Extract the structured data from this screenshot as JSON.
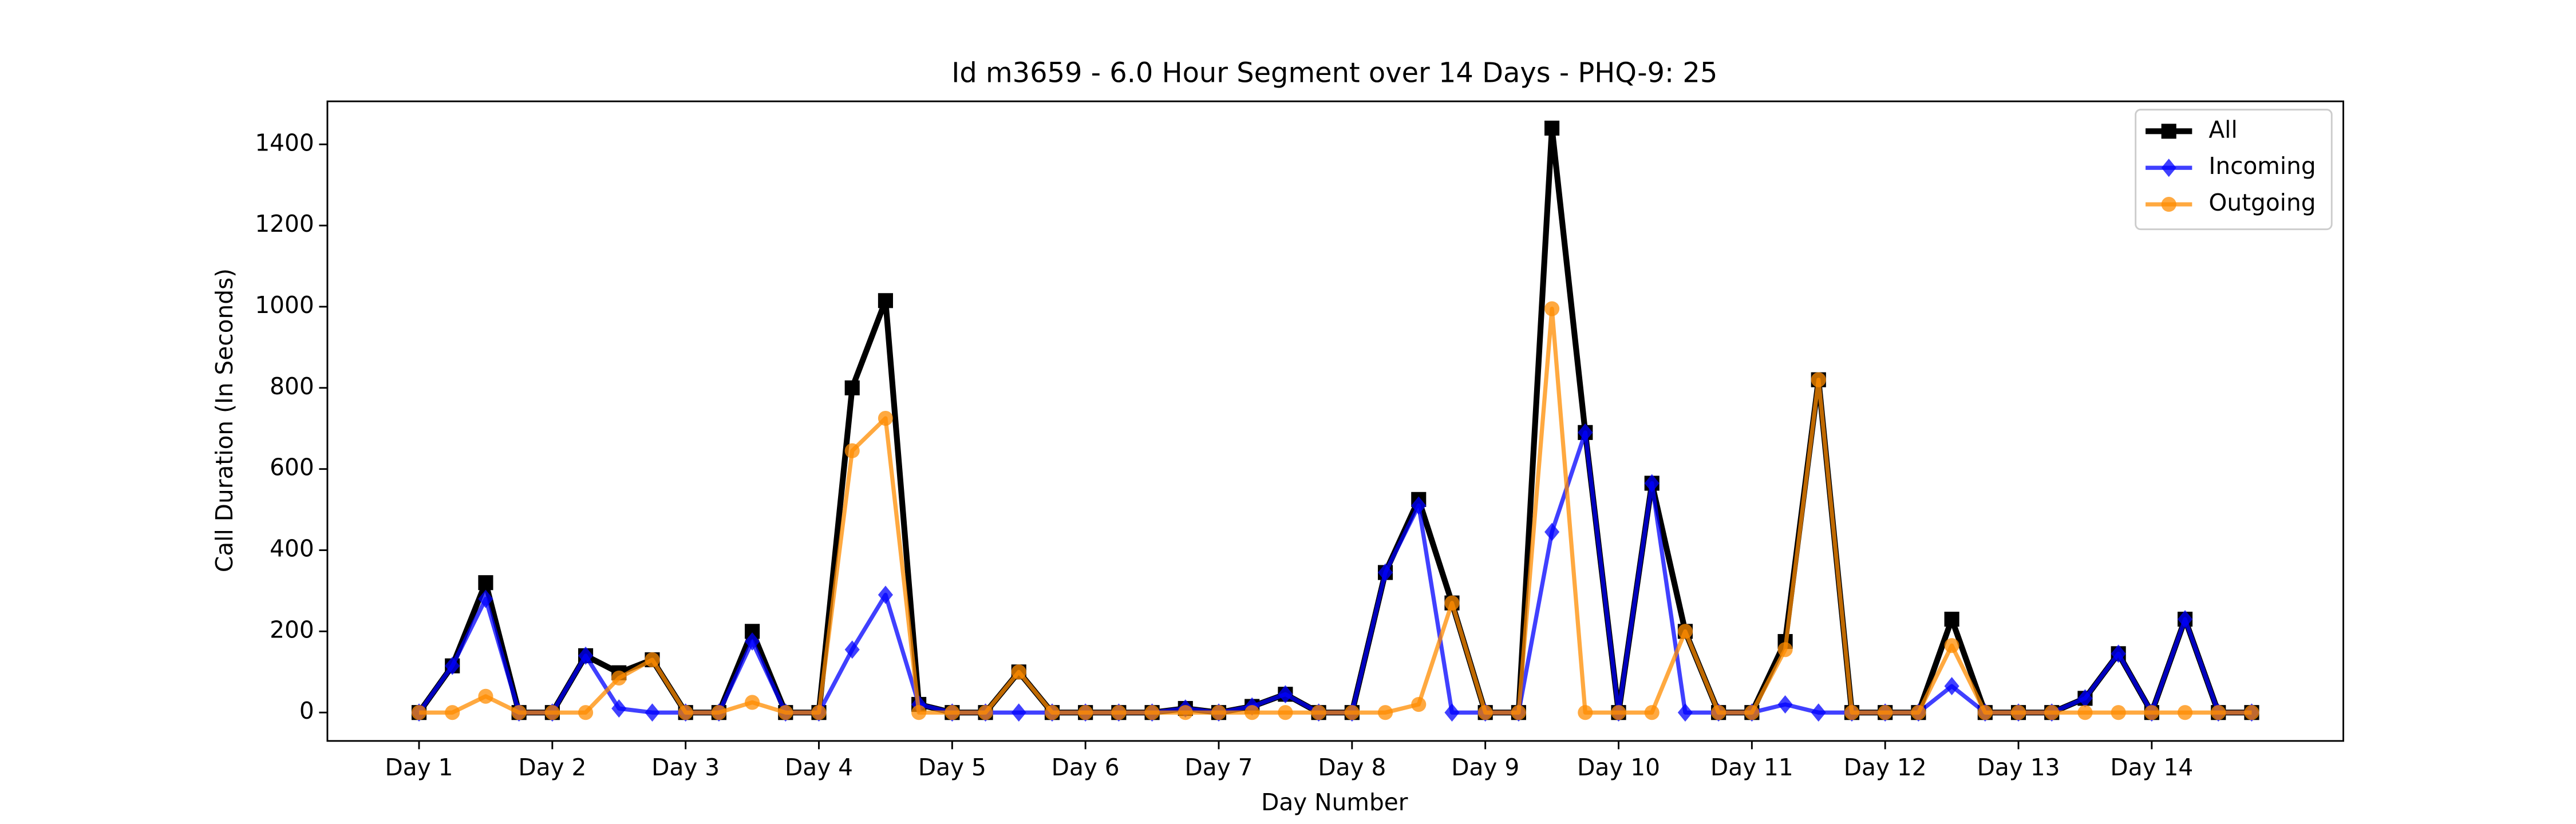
{
  "chart_data": {
    "type": "line",
    "title": "Id m3659 - 6.0 Hour Segment over 14 Days - PHQ-9: 25",
    "x_label": "Day Number",
    "y_label": "Call Duration (In Seconds)",
    "categories": [
      "Day 1",
      null,
      null,
      null,
      "Day 2",
      null,
      null,
      null,
      "Day 3",
      null,
      null,
      null,
      "Day 4",
      null,
      null,
      null,
      "Day 5",
      null,
      null,
      null,
      "Day 6",
      null,
      null,
      null,
      "Day 7",
      null,
      null,
      null,
      "Day 8",
      null,
      null,
      null,
      "Day 9",
      null,
      null,
      null,
      "Day 10",
      null,
      null,
      null,
      "Day 11",
      null,
      null,
      null,
      "Day 12",
      null,
      null,
      null,
      "Day 13",
      null,
      null,
      null,
      "Day 14",
      null,
      null,
      null
    ],
    "series": [
      {
        "name": "All",
        "color": "#000000",
        "marker": "square",
        "alpha": 1,
        "values": [
          0,
          115,
          320,
          0,
          0,
          140,
          98,
          130,
          0,
          0,
          200,
          0,
          0,
          800,
          1015,
          20,
          0,
          0,
          100,
          0,
          0,
          0,
          0,
          10,
          0,
          15,
          45,
          0,
          0,
          345,
          525,
          270,
          0,
          0,
          1440,
          690,
          0,
          565,
          200,
          0,
          0,
          175,
          820,
          0,
          0,
          0,
          230,
          0,
          0,
          0,
          35,
          145,
          0,
          230,
          0,
          0
        ]
      },
      {
        "name": "Incoming",
        "color": "#0000ff",
        "marker": "diamond",
        "alpha": 0.75,
        "values": [
          0,
          115,
          280,
          0,
          0,
          140,
          10,
          0,
          0,
          0,
          175,
          0,
          0,
          155,
          290,
          20,
          0,
          0,
          0,
          0,
          0,
          0,
          0,
          10,
          0,
          15,
          45,
          0,
          0,
          345,
          510,
          0,
          0,
          0,
          445,
          690,
          0,
          565,
          0,
          0,
          0,
          20,
          0,
          0,
          0,
          0,
          65,
          0,
          0,
          0,
          35,
          145,
          0,
          230,
          0,
          0
        ]
      },
      {
        "name": "Outgoing",
        "color": "#ff8c00",
        "marker": "circle",
        "alpha": 0.75,
        "values": [
          0,
          0,
          40,
          0,
          0,
          0,
          85,
          130,
          0,
          0,
          25,
          0,
          0,
          645,
          725,
          0,
          0,
          0,
          100,
          0,
          0,
          0,
          0,
          0,
          0,
          0,
          0,
          0,
          0,
          0,
          20,
          270,
          0,
          0,
          995,
          0,
          0,
          0,
          200,
          0,
          0,
          155,
          820,
          0,
          0,
          0,
          165,
          0,
          0,
          0,
          0,
          0,
          0,
          0,
          0,
          0
        ]
      }
    ],
    "ylim": [
      -70,
      1506
    ],
    "yticks": [
      0,
      200,
      400,
      600,
      800,
      1000,
      1200,
      1400
    ],
    "legend": "upper right"
  }
}
